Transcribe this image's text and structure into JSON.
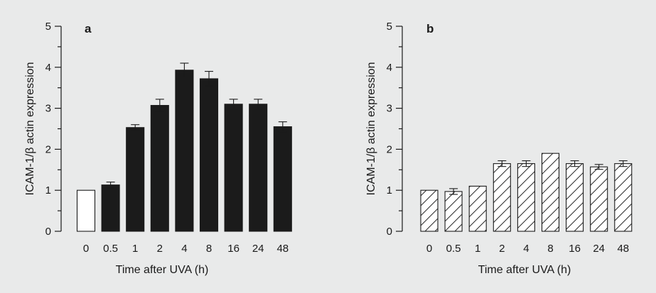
{
  "figure": {
    "background": "#e9eaea"
  },
  "chart_data": [
    {
      "type": "bar",
      "panel_label": "a",
      "xlabel": "Time after UVA (h)",
      "ylabel": "ICAM-1/β actin expression",
      "ylim": [
        0,
        5
      ],
      "yticks": [
        "0",
        "1",
        "2",
        "3",
        "4",
        "5"
      ],
      "categories": [
        "0",
        "0.5",
        "1",
        "2",
        "4",
        "8",
        "16",
        "24",
        "48"
      ],
      "values": [
        1.0,
        1.13,
        2.53,
        3.07,
        3.93,
        3.72,
        3.1,
        3.1,
        2.55
      ],
      "errors": [
        0,
        0.07,
        0.07,
        0.15,
        0.17,
        0.18,
        0.12,
        0.12,
        0.12
      ],
      "styles": [
        "open",
        "solid",
        "solid",
        "solid",
        "solid",
        "solid",
        "solid",
        "solid",
        "solid"
      ],
      "colors": {
        "solid": "#1b1b1b",
        "open": "#ffffff",
        "stroke": "#1b1b1b"
      }
    },
    {
      "type": "bar",
      "panel_label": "b",
      "xlabel": "Time after UVA (h)",
      "ylabel": "ICAM-1/β actin expression",
      "ylim": [
        0,
        5
      ],
      "yticks": [
        "0",
        "1",
        "2",
        "3",
        "4",
        "5"
      ],
      "categories": [
        "0",
        "0.5",
        "1",
        "2",
        "4",
        "8",
        "16",
        "24",
        "48"
      ],
      "values": [
        1.0,
        0.97,
        1.1,
        1.65,
        1.65,
        1.9,
        1.65,
        1.57,
        1.65
      ],
      "errors": [
        0,
        0.07,
        0,
        0.07,
        0.07,
        0,
        0.07,
        0.06,
        0.07
      ],
      "styles": [
        "hatched",
        "hatched",
        "hatched",
        "hatched",
        "hatched",
        "hatched",
        "hatched",
        "hatched",
        "hatched"
      ],
      "colors": {
        "solid": "#1b1b1b",
        "open": "#ffffff",
        "stroke": "#1b1b1b"
      }
    }
  ]
}
